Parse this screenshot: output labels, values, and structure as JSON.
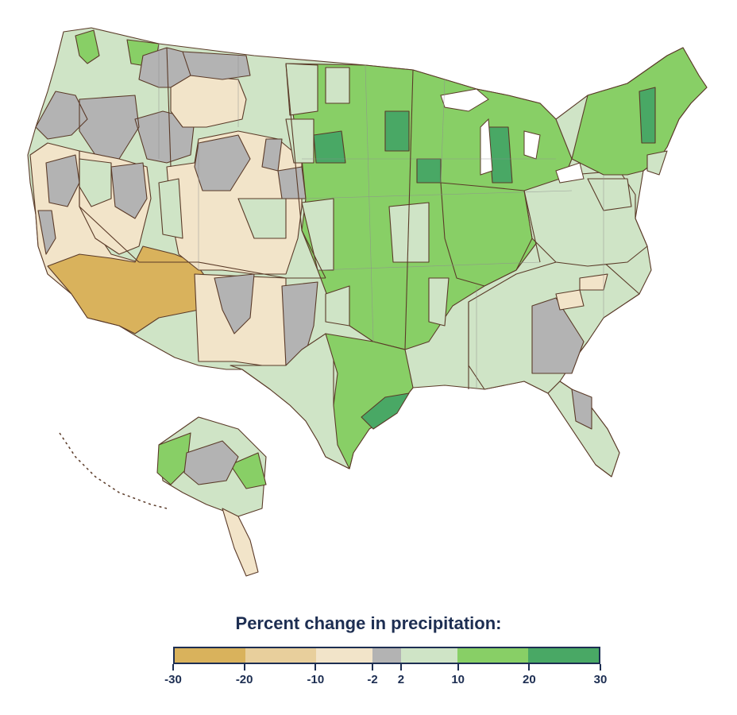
{
  "legend": {
    "title": "Percent change in precipitation:",
    "bins": [
      {
        "range": "-30 to -20",
        "color": "#d9b25c"
      },
      {
        "range": "-20 to -10",
        "color": "#e8cf9c"
      },
      {
        "range": "-10 to -2",
        "color": "#f2e4c9"
      },
      {
        "range": "-2 to 2",
        "color": "#b3b3b3"
      },
      {
        "range": "2 to 10",
        "color": "#cfe4c6"
      },
      {
        "range": "10 to 20",
        "color": "#88cf66"
      },
      {
        "range": "20 to 30",
        "color": "#49a865"
      }
    ],
    "tick_labels": [
      "-30",
      "-20",
      "-10",
      "-2",
      "2",
      "10",
      "20",
      "30"
    ]
  },
  "colors": {
    "outline": "#5a3a28",
    "title_text": "#1d2e52"
  },
  "map_regions": [
    {
      "name": "washington-west",
      "bin": "10 to 20"
    },
    {
      "name": "northwest-interior",
      "bin": "2 to 10"
    },
    {
      "name": "oregon-washington-interior",
      "bin": "-2 to 2"
    },
    {
      "name": "idaho-montana-west",
      "bin": "-2 to 2"
    },
    {
      "name": "montana-central",
      "bin": "-10 to -2"
    },
    {
      "name": "montana-east",
      "bin": "2 to 10"
    },
    {
      "name": "california",
      "bin": "-10 to -2"
    },
    {
      "name": "southern-california-arizona",
      "bin": "-30 to -20"
    },
    {
      "name": "nevada",
      "bin": "-10 to -2"
    },
    {
      "name": "nevada-central",
      "bin": "-2 to 2"
    },
    {
      "name": "utah-colorado",
      "bin": "-10 to -2"
    },
    {
      "name": "new-mexico",
      "bin": "-10 to -2"
    },
    {
      "name": "new-mexico-east",
      "bin": "-2 to 2"
    },
    {
      "name": "northern-plains",
      "bin": "10 to 20"
    },
    {
      "name": "south-dakota-core",
      "bin": "20 to 30"
    },
    {
      "name": "central-plains",
      "bin": "10 to 20"
    },
    {
      "name": "texas-west",
      "bin": "2 to 10"
    },
    {
      "name": "texas-east",
      "bin": "10 to 20"
    },
    {
      "name": "texas-gulf-coast",
      "bin": "20 to 30"
    },
    {
      "name": "upper-midwest",
      "bin": "10 to 20"
    },
    {
      "name": "minnesota-core",
      "bin": "20 to 30"
    },
    {
      "name": "iowa-core",
      "bin": "20 to 30"
    },
    {
      "name": "michigan-core",
      "bin": "20 to 30"
    },
    {
      "name": "ohio-valley",
      "bin": "10 to 20"
    },
    {
      "name": "appalachia",
      "bin": "2 to 10"
    },
    {
      "name": "southeast",
      "bin": "2 to 10"
    },
    {
      "name": "georgia",
      "bin": "-2 to 2"
    },
    {
      "name": "florida",
      "bin": "2 to 10"
    },
    {
      "name": "florida-north",
      "bin": "-2 to 2"
    },
    {
      "name": "northeast",
      "bin": "10 to 20"
    },
    {
      "name": "vermont",
      "bin": "20 to 30"
    },
    {
      "name": "carolinas-pocket",
      "bin": "-10 to -2"
    },
    {
      "name": "alaska-west",
      "bin": "10 to 20"
    },
    {
      "name": "alaska-interior",
      "bin": "-2 to 2"
    },
    {
      "name": "alaska-south",
      "bin": "2 to 10"
    },
    {
      "name": "alaska-panhandle",
      "bin": "-10 to -2"
    }
  ]
}
